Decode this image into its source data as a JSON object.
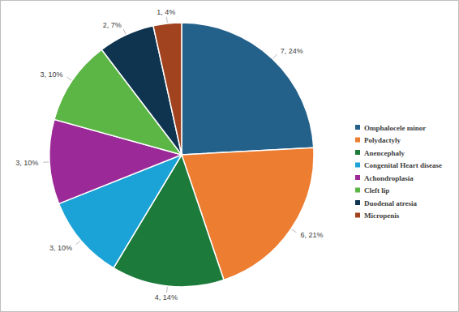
{
  "chart_data": {
    "type": "pie",
    "categories": [
      "Omphalocele minor",
      "Polydactyly",
      "Anencephaly",
      "Congenital Heart disease",
      "Achondroplasia",
      "Cleft lip",
      "Duodenal atresia",
      "Micropenis"
    ],
    "values": [
      7,
      6,
      4,
      3,
      3,
      3,
      2,
      1
    ],
    "value_labels": [
      "7, 24%",
      "6, 21%",
      "4, 14%",
      "3, 10%",
      "3, 10%",
      "3, 10%",
      "2, 7%",
      "1, 4%"
    ],
    "colors": [
      "#24618a",
      "#ed7d31",
      "#1c7a3a",
      "#1ba2d6",
      "#9b2a98",
      "#5cb646",
      "#0e3450",
      "#a2431f"
    ],
    "data_labels": true,
    "legend": "right"
  }
}
